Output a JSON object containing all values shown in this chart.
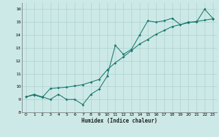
{
  "title": "",
  "xlabel": "Humidex (Indice chaleur)",
  "ylabel": "",
  "bg_color": "#cce9e7",
  "grid_color": "#b0d4d2",
  "line_color": "#1a7a6e",
  "ylim": [
    8,
    16.5
  ],
  "xlim": [
    -0.5,
    23.5
  ],
  "yticks": [
    8,
    9,
    10,
    11,
    12,
    13,
    14,
    15,
    16
  ],
  "xticks": [
    0,
    1,
    2,
    3,
    4,
    5,
    6,
    7,
    8,
    9,
    10,
    11,
    12,
    13,
    14,
    15,
    16,
    17,
    18,
    19,
    20,
    21,
    22,
    23
  ],
  "line1_x": [
    0,
    1,
    2,
    3,
    4,
    5,
    6,
    7,
    8,
    9,
    10,
    11,
    12,
    13,
    14,
    15,
    16,
    17,
    18,
    19,
    20,
    21,
    22,
    23
  ],
  "line1_y": [
    9.2,
    9.4,
    9.2,
    9.0,
    9.4,
    9.0,
    9.0,
    8.6,
    9.4,
    9.8,
    10.8,
    13.2,
    12.5,
    12.9,
    14.0,
    15.1,
    15.0,
    15.1,
    15.3,
    14.8,
    15.0,
    15.0,
    16.0,
    15.3
  ],
  "line2_x": [
    0,
    1,
    2,
    3,
    4,
    5,
    6,
    7,
    8,
    9,
    10,
    11,
    12,
    13,
    14,
    15,
    16,
    17,
    18,
    19,
    20,
    21,
    22,
    23
  ],
  "line2_y": [
    9.2,
    9.35,
    9.15,
    9.85,
    9.9,
    9.95,
    10.05,
    10.15,
    10.35,
    10.55,
    11.3,
    11.85,
    12.3,
    12.8,
    13.3,
    13.65,
    14.05,
    14.35,
    14.65,
    14.8,
    14.95,
    15.05,
    15.15,
    15.25
  ]
}
